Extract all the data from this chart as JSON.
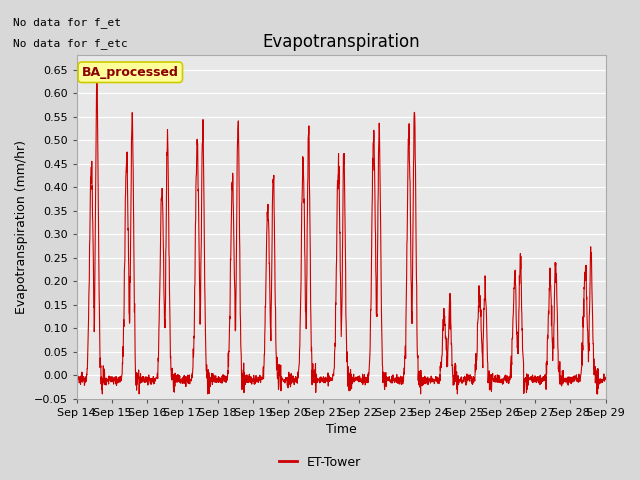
{
  "title": "Evapotranspiration",
  "ylabel": "Evapotranspiration (mm/hr)",
  "xlabel": "Time",
  "ylim": [
    -0.05,
    0.68
  ],
  "yticks": [
    -0.05,
    0.0,
    0.05,
    0.1,
    0.15,
    0.2,
    0.25,
    0.3,
    0.35,
    0.4,
    0.45,
    0.5,
    0.55,
    0.6,
    0.65
  ],
  "line_color": "#cc0000",
  "line_width": 0.8,
  "fig_bg_color": "#d8d8d8",
  "plot_bg_color": "#e8e8e8",
  "top_left_text1": "No data for f_et",
  "top_left_text2": "No data for f_etc",
  "box_label": "BA_processed",
  "legend_label": "ET-Tower",
  "x_tick_labels": [
    "Sep 14",
    "Sep 15",
    "Sep 16",
    "Sep 17",
    "Sep 18",
    "Sep 19",
    "Sep 20",
    "Sep 21",
    "Sep 22",
    "Sep 23",
    "Sep 24",
    "Sep 25",
    "Sep 26",
    "Sep 27",
    "Sep 28",
    "Sep 29"
  ],
  "day_peaks": [
    0.63,
    0.55,
    0.52,
    0.54,
    0.56,
    0.44,
    0.52,
    0.47,
    0.53,
    0.57,
    0.17,
    0.21,
    0.25,
    0.25,
    0.26
  ],
  "day_secondary_peaks": [
    0.45,
    0.47,
    0.4,
    0.5,
    0.42,
    0.37,
    0.45,
    0.45,
    0.52,
    0.52,
    0.13,
    0.18,
    0.21,
    0.2,
    0.23
  ],
  "points_per_day": 144,
  "num_days": 15
}
